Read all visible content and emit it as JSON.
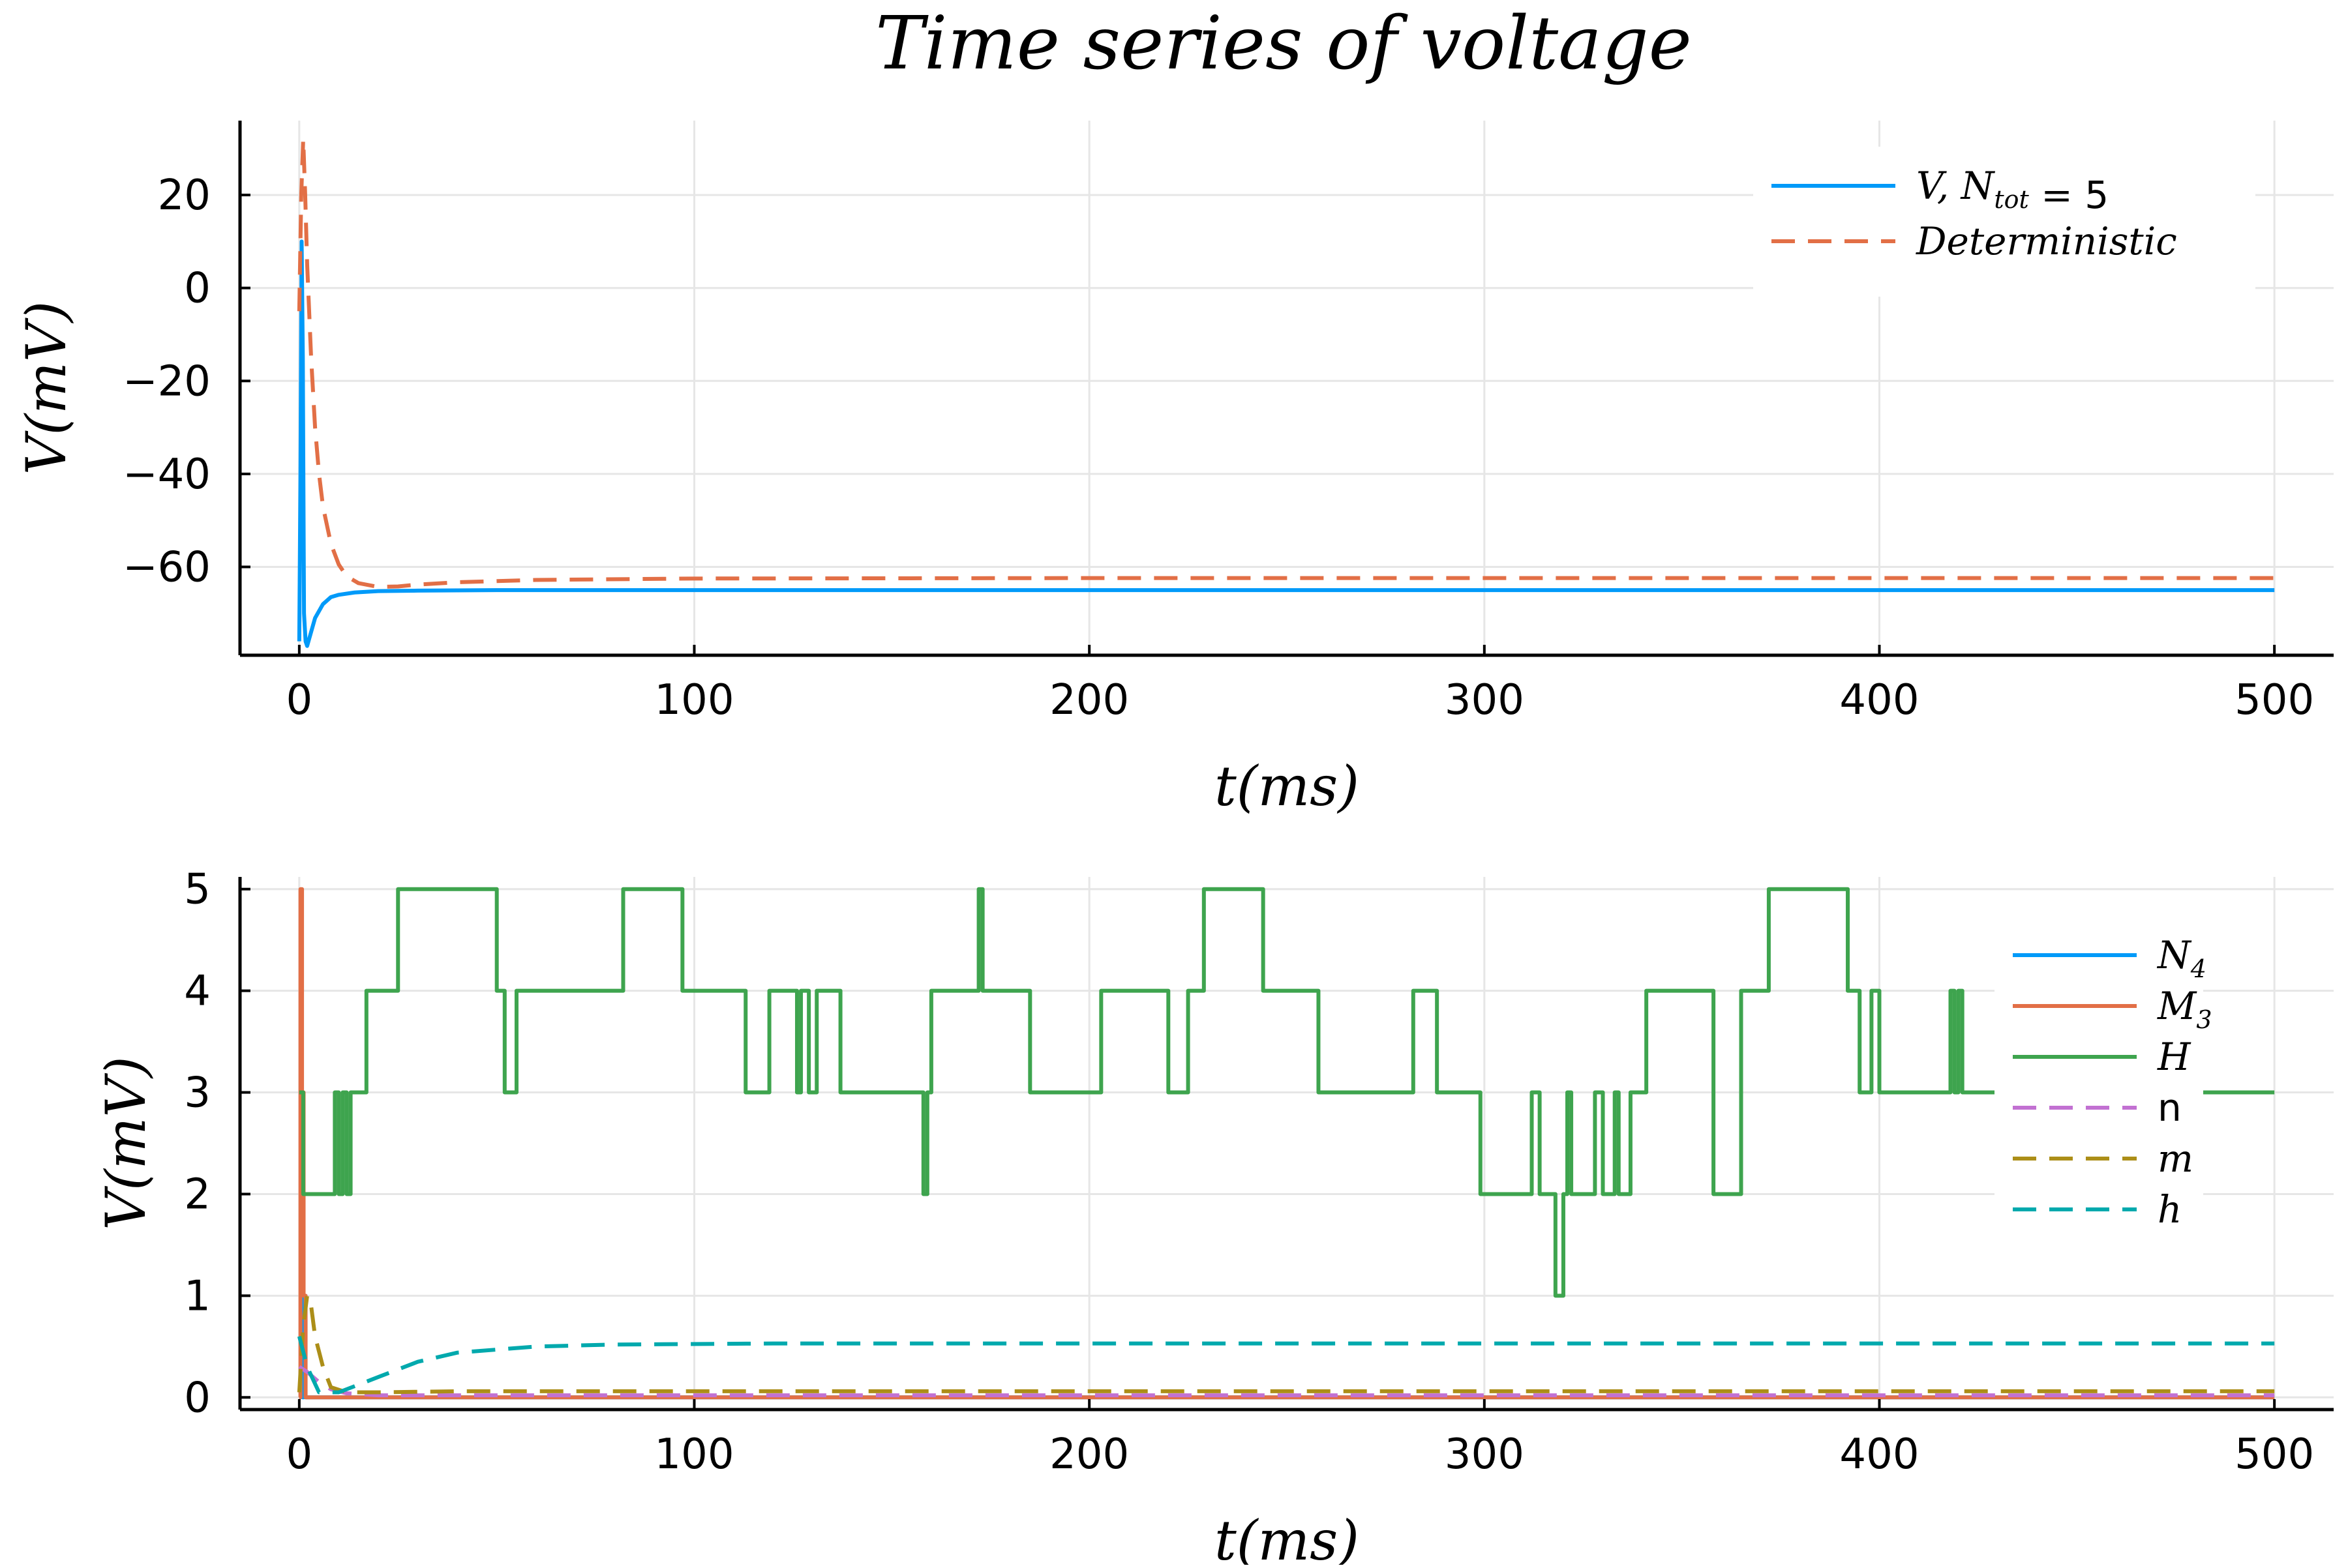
{
  "chart_data": [
    {
      "type": "line",
      "title": "Time series of voltage",
      "xlabel": "t(ms)",
      "ylabel": "V(mV)",
      "xlim": [
        -15,
        515
      ],
      "ylim": [
        -79,
        36
      ],
      "xticks": [
        0,
        100,
        200,
        300,
        400,
        500
      ],
      "yticks": [
        -60,
        -40,
        -20,
        0,
        20
      ],
      "xtick_labels": [
        "0",
        "100",
        "200",
        "300",
        "400",
        "500"
      ],
      "ytick_labels": [
        "−60",
        "−40",
        "−20",
        "0",
        "20"
      ],
      "grid": true,
      "legend_position": "top-right",
      "legend": [
        {
          "main": "V, N",
          "sub": "tot",
          "suffix": " = ",
          "value": "5",
          "color": "#009af9",
          "dash": "solid"
        },
        {
          "main": "Deterministic",
          "sub": "",
          "suffix": "",
          "value": "",
          "color": "#e26f46",
          "dash": "dashed"
        }
      ],
      "series": [
        {
          "color": "#009af9",
          "dash": "solid",
          "x": [
            0,
            0.3,
            0.6,
            0.9,
            1.2,
            1.6,
            2,
            3,
            4,
            6,
            8,
            10,
            14,
            20,
            30,
            50,
            100,
            500
          ],
          "y": [
            -76,
            -40,
            10,
            -15,
            -70,
            -76,
            -77,
            -74,
            -71,
            -68,
            -66.5,
            -66,
            -65.5,
            -65.2,
            -65.1,
            -65,
            -65,
            -65
          ]
        },
        {
          "color": "#e26f46",
          "dash": "dashed",
          "x": [
            0,
            0.5,
            1,
            1.5,
            2,
            3,
            4,
            5,
            6,
            8,
            10,
            12,
            15,
            20,
            25,
            30,
            40,
            60,
            100,
            200,
            500
          ],
          "y": [
            -5,
            20,
            32,
            20,
            5,
            -15,
            -30,
            -40,
            -47,
            -55,
            -59.5,
            -62,
            -63.5,
            -64.3,
            -64.2,
            -63.8,
            -63.3,
            -62.8,
            -62.5,
            -62.4,
            -62.4
          ]
        }
      ]
    },
    {
      "type": "line",
      "title": "",
      "xlabel": "t(ms)",
      "ylabel": "V(mV)",
      "xlim": [
        -15,
        515
      ],
      "ylim": [
        -0.12,
        5.12
      ],
      "xticks": [
        0,
        100,
        200,
        300,
        400,
        500
      ],
      "yticks": [
        0,
        1,
        2,
        3,
        4,
        5
      ],
      "xtick_labels": [
        "0",
        "100",
        "200",
        "300",
        "400",
        "500"
      ],
      "ytick_labels": [
        "0",
        "1",
        "2",
        "3",
        "4",
        "5"
      ],
      "grid": true,
      "legend_position": "right",
      "legend": [
        {
          "main": "N",
          "sub": "4",
          "italic": true,
          "color": "#009af9",
          "dash": "solid"
        },
        {
          "main": "M",
          "sub": "3",
          "italic": true,
          "color": "#e26f46",
          "dash": "solid"
        },
        {
          "main": "H",
          "sub": "",
          "italic": true,
          "color": "#3ea44e",
          "dash": "solid"
        },
        {
          "main": "n",
          "sub": "",
          "italic": false,
          "color": "#c271d2",
          "dash": "dashed"
        },
        {
          "main": "m",
          "sub": "",
          "italic": true,
          "color": "#ac8e18",
          "dash": "dashed"
        },
        {
          "main": "h",
          "sub": "",
          "italic": true,
          "color": "#00a9ad",
          "dash": "dashed"
        }
      ],
      "series": [
        {
          "color": "#009af9",
          "dash": "solid",
          "step": true,
          "x": [
            0,
            0.4,
            0.8,
            1.2,
            1.6,
            2.2,
            500
          ],
          "y": [
            0,
            1,
            0,
            1,
            0,
            0,
            0
          ]
        },
        {
          "color": "#e26f46",
          "dash": "solid",
          "step": true,
          "x": [
            0,
            0.3,
            0.7,
            1.1,
            1.6,
            2.5,
            500
          ],
          "y": [
            0,
            5,
            3,
            1,
            0,
            0,
            0
          ]
        },
        {
          "color": "#3ea44e",
          "dash": "solid",
          "step": true,
          "x": [
            0,
            1,
            9,
            10,
            11,
            12,
            13,
            17,
            25,
            50,
            52,
            55,
            82,
            97,
            113,
            119,
            126,
            127,
            129,
            131,
            137,
            158,
            159,
            160,
            172,
            173,
            185,
            203,
            220,
            225,
            229,
            244,
            258,
            282,
            288,
            299,
            312,
            314,
            318,
            320,
            321,
            322,
            328,
            330,
            333,
            334,
            337,
            341,
            358,
            365,
            372,
            392,
            395,
            398,
            400,
            418,
            419,
            420,
            421,
            422,
            500
          ],
          "y": [
            3,
            2,
            3,
            2,
            3,
            2,
            3,
            4,
            5,
            4,
            3,
            4,
            5,
            4,
            3,
            4,
            3,
            4,
            3,
            4,
            3,
            2,
            3,
            4,
            5,
            4,
            3,
            4,
            3,
            4,
            5,
            4,
            3,
            4,
            3,
            2,
            3,
            2,
            1,
            2,
            3,
            2,
            3,
            2,
            3,
            2,
            3,
            4,
            2,
            4,
            5,
            4,
            3,
            4,
            3,
            4,
            3,
            4,
            3,
            3,
            3
          ]
        },
        {
          "color": "#c271d2",
          "dash": "dashed",
          "x": [
            0,
            2,
            5,
            8,
            12,
            20,
            500
          ],
          "y": [
            0.3,
            0.25,
            0.15,
            0.08,
            0.04,
            0.02,
            0.02
          ]
        },
        {
          "color": "#ac8e18",
          "dash": "dashed",
          "x": [
            0,
            1,
            2,
            3,
            4,
            6,
            8,
            12,
            20,
            40,
            500
          ],
          "y": [
            0.05,
            0.7,
            1.0,
            0.9,
            0.6,
            0.3,
            0.1,
            0.05,
            0.05,
            0.06,
            0.06
          ]
        },
        {
          "color": "#00a9ad",
          "dash": "dashed",
          "x": [
            0,
            2,
            5,
            10,
            20,
            30,
            40,
            60,
            80,
            120,
            500
          ],
          "y": [
            0.6,
            0.3,
            0.05,
            0.05,
            0.2,
            0.35,
            0.44,
            0.5,
            0.52,
            0.53,
            0.53
          ]
        }
      ]
    }
  ]
}
